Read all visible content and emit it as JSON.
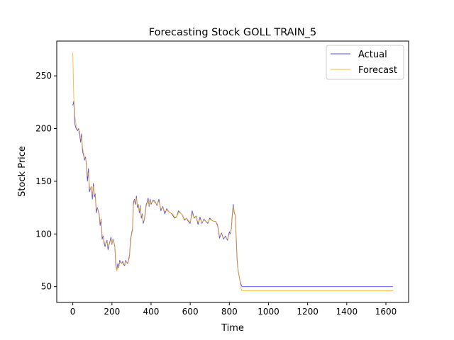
{
  "chart_data": {
    "type": "line",
    "title": "Forecasting Stock GOLL TRAIN_5",
    "xlabel": "Time",
    "ylabel": "Stock Price",
    "xlim": [
      -82,
      1716
    ],
    "ylim": [
      35,
      283
    ],
    "xticks": [
      "0",
      "200",
      "400",
      "600",
      "800",
      "1000",
      "1200",
      "1400",
      "1600"
    ],
    "yticks": [
      "50",
      "100",
      "150",
      "200",
      "250"
    ],
    "grid": false,
    "legend_position": "top-right",
    "series": [
      {
        "name": "Actual",
        "color": "#0000ff",
        "x": [
          0,
          5,
          10,
          15,
          20,
          25,
          30,
          35,
          40,
          45,
          50,
          55,
          60,
          65,
          70,
          75,
          80,
          85,
          90,
          95,
          100,
          105,
          110,
          115,
          120,
          125,
          130,
          135,
          140,
          145,
          150,
          155,
          160,
          165,
          170,
          175,
          180,
          185,
          190,
          195,
          200,
          205,
          210,
          215,
          220,
          225,
          230,
          235,
          240,
          245,
          250,
          255,
          260,
          265,
          270,
          275,
          280,
          285,
          290,
          295,
          300,
          305,
          310,
          315,
          320,
          325,
          330,
          335,
          340,
          345,
          350,
          355,
          360,
          365,
          370,
          375,
          380,
          385,
          390,
          395,
          400,
          410,
          420,
          430,
          440,
          450,
          460,
          470,
          480,
          490,
          500,
          510,
          520,
          530,
          540,
          550,
          560,
          570,
          580,
          590,
          600,
          610,
          620,
          630,
          640,
          650,
          660,
          670,
          680,
          690,
          700,
          710,
          720,
          730,
          740,
          750,
          760,
          770,
          780,
          790,
          800,
          805,
          810,
          815,
          820,
          825,
          830,
          835,
          840,
          845,
          850,
          855,
          860,
          865,
          870,
          880,
          890,
          900,
          950,
          1000,
          1100,
          1200,
          1300,
          1400,
          1500,
          1636
        ],
        "values": [
          222,
          226,
          205,
          201,
          199,
          198,
          200,
          194,
          187,
          195,
          178,
          175,
          170,
          173,
          165,
          150,
          162,
          140,
          143,
          145,
          133,
          148,
          135,
          138,
          120,
          125,
          122,
          118,
          108,
          114,
          95,
          98,
          91,
          88,
          92,
          94,
          85,
          90,
          93,
          97,
          90,
          95,
          92,
          88,
          70,
          66,
          72,
          68,
          75,
          73,
          72,
          74,
          71,
          70,
          75,
          73,
          72,
          75,
          80,
          95,
          100,
          105,
          130,
          133,
          128,
          136,
          125,
          128,
          120,
          127,
          115,
          119,
          110,
          113,
          120,
          128,
          130,
          134,
          126,
          133,
          128,
          132,
          131,
          127,
          133,
          122,
          126,
          119,
          124,
          121,
          120,
          118,
          115,
          116,
          122,
          120,
          118,
          113,
          115,
          112,
          110,
          122,
          115,
          117,
          109,
          116,
          110,
          114,
          112,
          110,
          115,
          113,
          112,
          112,
          108,
          96,
          101,
          95,
          98,
          94,
          102,
          100,
          105,
          118,
          128,
          120,
          118,
          95,
          75,
          65,
          60,
          55,
          52,
          50,
          50,
          50,
          50,
          50,
          50,
          50,
          50,
          50,
          50,
          50,
          50,
          50
        ]
      },
      {
        "name": "Forecast",
        "color": "#ffa500",
        "x": [
          0,
          5,
          10,
          15,
          20,
          25,
          30,
          35,
          40,
          45,
          50,
          55,
          60,
          65,
          70,
          75,
          80,
          85,
          90,
          95,
          100,
          105,
          110,
          115,
          120,
          125,
          130,
          135,
          140,
          145,
          150,
          155,
          160,
          165,
          170,
          175,
          180,
          185,
          190,
          195,
          200,
          205,
          210,
          215,
          220,
          225,
          230,
          235,
          240,
          245,
          250,
          255,
          260,
          265,
          270,
          275,
          280,
          285,
          290,
          295,
          300,
          305,
          310,
          315,
          320,
          325,
          330,
          335,
          340,
          345,
          350,
          355,
          360,
          365,
          370,
          375,
          380,
          385,
          390,
          395,
          400,
          410,
          420,
          430,
          440,
          450,
          460,
          470,
          480,
          490,
          500,
          510,
          520,
          530,
          540,
          550,
          560,
          570,
          580,
          590,
          600,
          610,
          620,
          630,
          640,
          650,
          660,
          670,
          680,
          690,
          700,
          710,
          720,
          730,
          740,
          750,
          760,
          770,
          780,
          790,
          800,
          805,
          810,
          815,
          820,
          825,
          830,
          835,
          840,
          845,
          850,
          855,
          860,
          865,
          870,
          880,
          890,
          900,
          950,
          1000,
          1100,
          1200,
          1300,
          1400,
          1500,
          1636
        ],
        "values": [
          272,
          230,
          212,
          206,
          201,
          199,
          199,
          197,
          190,
          192,
          182,
          177,
          172,
          172,
          167,
          155,
          158,
          145,
          143,
          145,
          137,
          145,
          138,
          137,
          124,
          124,
          123,
          119,
          111,
          113,
          99,
          97,
          93,
          90,
          91,
          93,
          88,
          89,
          92,
          95,
          91,
          94,
          92,
          89,
          74,
          65,
          70,
          69,
          73,
          74,
          72,
          73,
          72,
          71,
          74,
          73,
          73,
          74,
          78,
          92,
          99,
          103,
          127,
          132,
          130,
          134,
          127,
          128,
          122,
          126,
          117,
          118,
          112,
          113,
          118,
          126,
          129,
          132,
          127,
          131,
          129,
          131,
          130,
          128,
          131,
          124,
          125,
          121,
          123,
          121,
          120,
          119,
          116,
          116,
          120,
          120,
          118,
          114,
          115,
          113,
          111,
          119,
          116,
          116,
          111,
          114,
          111,
          113,
          112,
          111,
          114,
          113,
          112,
          112,
          109,
          98,
          100,
          96,
          97,
          95,
          100,
          100,
          104,
          115,
          126,
          122,
          117,
          98,
          78,
          66,
          60,
          54,
          48,
          46,
          46,
          46,
          46,
          46,
          46,
          46,
          46,
          46,
          46,
          46,
          46,
          46
        ]
      }
    ]
  }
}
